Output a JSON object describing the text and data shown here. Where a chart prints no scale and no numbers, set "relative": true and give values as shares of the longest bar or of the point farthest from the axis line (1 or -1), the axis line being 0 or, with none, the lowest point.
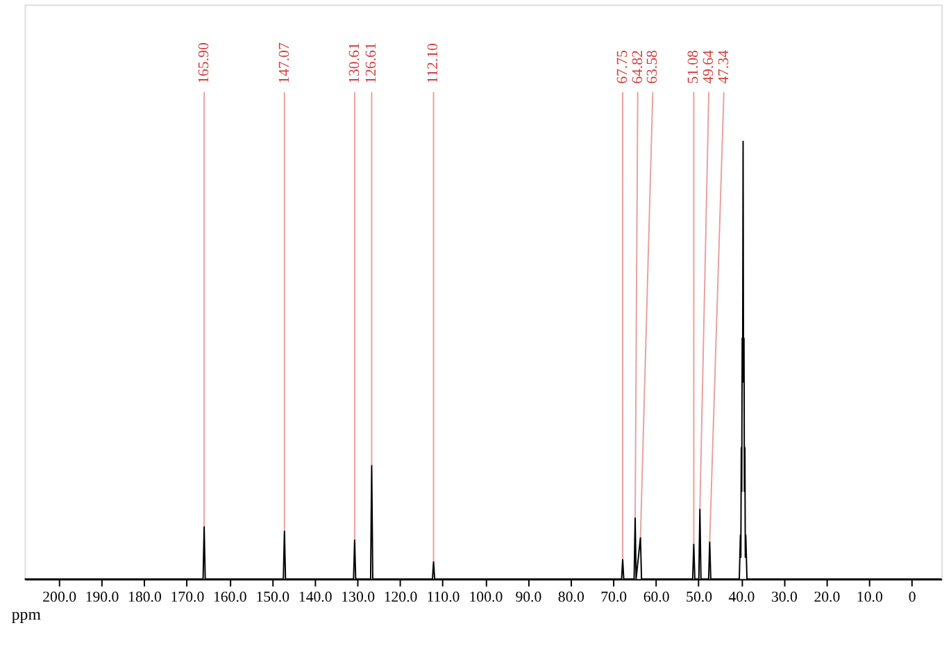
{
  "chart_data": {
    "type": "line",
    "relative": true,
    "xlabel": "ppm",
    "xlim": [
      208,
      -7
    ],
    "xticks": [
      {
        "value": 200,
        "label": "200.0"
      },
      {
        "value": 190,
        "label": "190.0"
      },
      {
        "value": 180,
        "label": "180.0"
      },
      {
        "value": 170,
        "label": "170.0"
      },
      {
        "value": 160,
        "label": "160.0"
      },
      {
        "value": 150,
        "label": "150.0"
      },
      {
        "value": 140,
        "label": "140.0"
      },
      {
        "value": 130,
        "label": "130.0"
      },
      {
        "value": 120,
        "label": "120.0"
      },
      {
        "value": 110,
        "label": "110.0"
      },
      {
        "value": 100,
        "label": "100.0"
      },
      {
        "value": 90,
        "label": "90.0"
      },
      {
        "value": 80,
        "label": "80.0"
      },
      {
        "value": 70,
        "label": "70.0"
      },
      {
        "value": 60,
        "label": "60.0"
      },
      {
        "value": 50,
        "label": "50.0"
      },
      {
        "value": 40,
        "label": "40.0"
      },
      {
        "value": 30,
        "label": "30.0"
      },
      {
        "value": 20,
        "label": "20.0"
      },
      {
        "value": 10,
        "label": "10.0"
      },
      0
    ],
    "grid": false,
    "marker": "none",
    "line_style": "solid",
    "series": [
      {
        "color": "#000000",
        "x": [
          208,
          166.15,
          165.9,
          165.65,
          147.32,
          147.07,
          146.82,
          130.86,
          130.61,
          130.36,
          126.86,
          126.61,
          126.36,
          112.35,
          112.1,
          111.85,
          68.0,
          67.75,
          67.5,
          65.07,
          64.82,
          64.6,
          63.58,
          63.33,
          51.33,
          51.08,
          50.83,
          49.89,
          49.64,
          49.39,
          47.59,
          47.34,
          47.09,
          40.4,
          40.14,
          40.04,
          39.93,
          39.83,
          39.72,
          39.62,
          39.51,
          39.41,
          39.3,
          39.2,
          39.09,
          38.99,
          38.88,
          38.6,
          -7
        ],
        "values": [
          0,
          0,
          0.12,
          0,
          0,
          0.11,
          0,
          0,
          0.09,
          0,
          0,
          0.26,
          0,
          0,
          0.04,
          0,
          0,
          0.045,
          0,
          0,
          0.14,
          0,
          0.095,
          0,
          0,
          0.08,
          0,
          0,
          0.16,
          0,
          0,
          0.085,
          0,
          0,
          0.1,
          0.05,
          0.3,
          0.2,
          0.55,
          0.45,
          1.0,
          0.45,
          0.55,
          0.2,
          0.3,
          0.05,
          0.1,
          0,
          0
        ]
      }
    ],
    "annotations": [
      {
        "text": "165.90",
        "x": 165.9,
        "y": 0.12
      },
      {
        "text": "147.07",
        "x": 147.07,
        "y": 0.11
      },
      {
        "text": "130.61",
        "x": 130.61,
        "y": 0.09
      },
      {
        "text": "126.61",
        "x": 126.61,
        "y": 0.26
      },
      {
        "text": "112.10",
        "x": 112.1,
        "y": 0.04
      },
      {
        "text": "67.75",
        "x": 67.75,
        "y": 0.045
      },
      {
        "text": "64.82",
        "x": 64.82,
        "y": 0.14
      },
      {
        "text": "63.58",
        "x": 63.58,
        "y": 0.095
      },
      {
        "text": "51.08",
        "x": 51.08,
        "y": 0.08
      },
      {
        "text": "49.64",
        "x": 49.64,
        "y": 0.16
      },
      {
        "text": "47.34",
        "x": 47.34,
        "y": 0.085
      }
    ]
  }
}
